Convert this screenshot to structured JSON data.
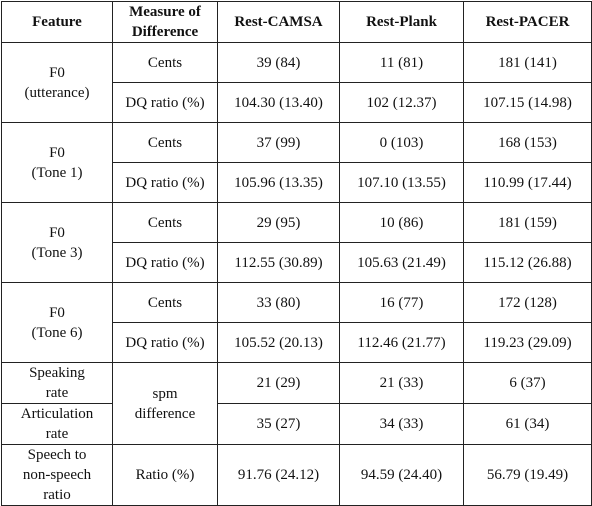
{
  "headers": {
    "feature": "Feature",
    "measure": "Measure of\nDifference",
    "camsa": "Rest-CAMSA",
    "plank": "Rest-Plank",
    "pacer": "Rest-PACER"
  },
  "groups": [
    {
      "feature": "F0\n(utterance)",
      "rows": [
        {
          "measure": "Cents",
          "camsa": "39 (84)",
          "plank": "11 (81)",
          "pacer": "181 (141)"
        },
        {
          "measure": "DQ ratio (%)",
          "camsa": "104.30 (13.40)",
          "plank": "102 (12.37)",
          "pacer": "107.15 (14.98)"
        }
      ]
    },
    {
      "feature": "F0\n(Tone 1)",
      "rows": [
        {
          "measure": "Cents",
          "camsa": "37 (99)",
          "plank": "0 (103)",
          "pacer": "168 (153)"
        },
        {
          "measure": "DQ ratio (%)",
          "camsa": "105.96 (13.35)",
          "plank": "107.10 (13.55)",
          "pacer": "110.99 (17.44)"
        }
      ]
    },
    {
      "feature": "F0\n(Tone 3)",
      "rows": [
        {
          "measure": "Cents",
          "camsa": "29 (95)",
          "plank": "10 (86)",
          "pacer": "181 (159)"
        },
        {
          "measure": "DQ ratio (%)",
          "camsa": "112.55 (30.89)",
          "plank": "105.63 (21.49)",
          "pacer": "115.12 (26.88)"
        }
      ]
    },
    {
      "feature": "F0\n(Tone 6)",
      "rows": [
        {
          "measure": "Cents",
          "camsa": "33 (80)",
          "plank": "16 (77)",
          "pacer": "172 (128)"
        },
        {
          "measure": "DQ ratio (%)",
          "camsa": "105.52 (20.13)",
          "plank": "112.46 (21.77)",
          "pacer": "119.23 (29.09)"
        }
      ]
    }
  ],
  "rate": {
    "measure": "spm\ndifference",
    "rows": [
      {
        "feature": "Speaking\nrate",
        "camsa": "21 (29)",
        "plank": "21 (33)",
        "pacer": "6 (37)"
      },
      {
        "feature": "Articulation\nrate",
        "camsa": "35 (27)",
        "plank": "34 (33)",
        "pacer": "61 (34)"
      }
    ]
  },
  "speech": {
    "feature": "Speech to\nnon-speech\nratio",
    "measure": "Ratio (%)",
    "camsa": "91.76 (24.12)",
    "plank": "94.59 (24.40)",
    "pacer": "56.79 (19.49)"
  }
}
